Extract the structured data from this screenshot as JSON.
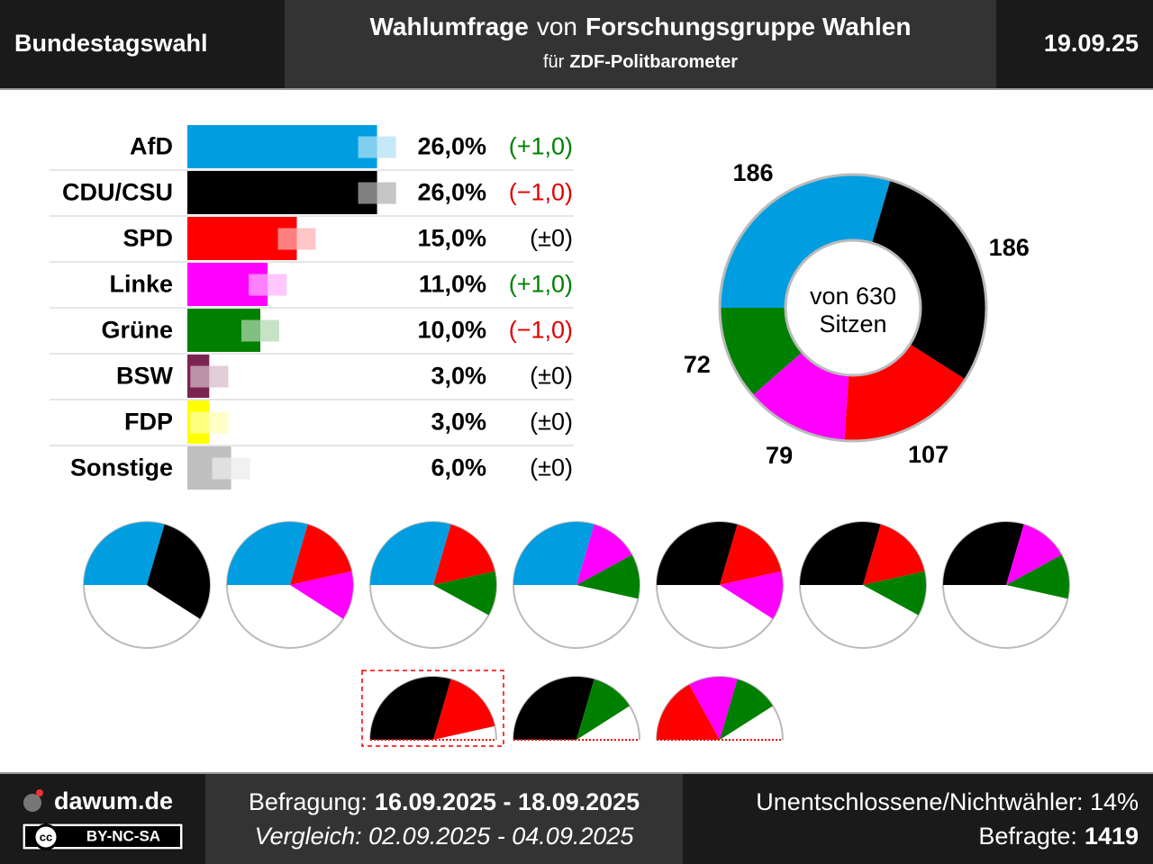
{
  "header": {
    "left": "Bundestagswahl",
    "title": [
      "Wahlumfrage",
      "von",
      "Forschungsgruppe Wahlen"
    ],
    "subtitle": [
      "für",
      "ZDF-Politbarometer"
    ],
    "date": "19.09.25"
  },
  "chart_data": [
    {
      "type": "bar",
      "categories": [
        "AfD",
        "CDU/CSU",
        "SPD",
        "Linke",
        "Grüne",
        "BSW",
        "FDP",
        "Sonstige"
      ],
      "values": [
        26,
        26,
        15,
        11,
        10,
        3,
        3,
        6
      ],
      "value_labels": [
        "26,0%",
        "26,0%",
        "15,0%",
        "11,0%",
        "10,0%",
        "3,0%",
        "3,0%",
        "6,0%"
      ],
      "changes": [
        1,
        -1,
        0,
        1,
        -1,
        0,
        0,
        0
      ],
      "change_labels": [
        "(+1,0)",
        "(−1,0)",
        "(±0)",
        "(+1,0)",
        "(−1,0)",
        "(±0)",
        "(±0)",
        "(±0)"
      ],
      "colors": [
        "#009ee0",
        "#000000",
        "#ff0000",
        "#ff00ff",
        "#008000",
        "#7b2450",
        "#ffff00",
        "#c0c0c0"
      ],
      "xlim": [
        0,
        30
      ]
    },
    {
      "type": "donut",
      "categories": [
        "AfD",
        "CDU/CSU",
        "SPD",
        "Linke",
        "Grüne"
      ],
      "values": [
        186,
        186,
        107,
        79,
        72
      ],
      "colors": [
        "#009ee0",
        "#000000",
        "#ff0000",
        "#ff00ff",
        "#008000"
      ],
      "center_text": [
        "von 630",
        "Sitzen"
      ],
      "coalitions": [
        [
          0,
          1
        ],
        [
          0,
          2,
          3
        ],
        [
          0,
          2,
          4
        ],
        [
          0,
          3,
          4
        ],
        [
          1,
          2,
          3
        ],
        [
          1,
          2,
          4
        ],
        [
          1,
          3,
          4
        ],
        [
          1,
          2
        ],
        [
          1,
          4
        ],
        [
          2,
          3,
          4
        ]
      ],
      "highlighted_coalition": 7
    }
  ],
  "footer": {
    "site": "dawum.de",
    "license_icon": "cc",
    "license": "BY-NC-SA",
    "survey_label": "Befragung:",
    "survey_period": "16.09.2025 - 18.09.2025",
    "comparison": "Vergleich: 02.09.2025 - 04.09.2025",
    "undecided": "Unentschlossene/Nichtwähler: 14%",
    "respondents_label": "Befragte:",
    "respondents": 1419
  }
}
